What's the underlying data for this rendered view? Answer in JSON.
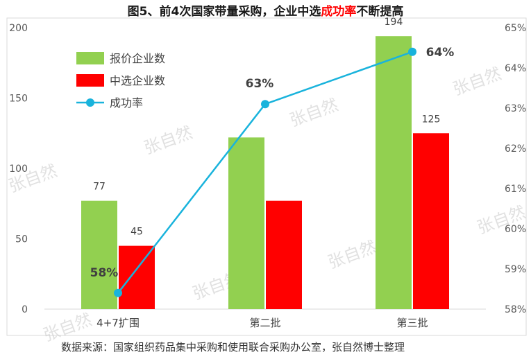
{
  "title": {
    "prefix": "图5、前4次国家带量采购，企业中选",
    "highlight": "成功率",
    "suffix": "不断提高"
  },
  "source": "数据来源：国家组织药品集中采购和使用联合采购办公室，张自然博士整理",
  "watermark": "张自然",
  "colors": {
    "bid": "#92d050",
    "selected": "#ff0000",
    "rate": "#19b3dc"
  },
  "chart_data": {
    "type": "bar",
    "categories": [
      "4+7扩围",
      "第二批",
      "第三批"
    ],
    "series": [
      {
        "name": "报价企业数",
        "kind": "bar",
        "axis": "left",
        "values": [
          77,
          122,
          194
        ],
        "labels": [
          "77",
          "",
          "194"
        ]
      },
      {
        "name": "中选企业数",
        "kind": "bar",
        "axis": "left",
        "values": [
          45,
          77,
          125
        ],
        "labels": [
          "45",
          "",
          "125"
        ]
      },
      {
        "name": "成功率",
        "kind": "line",
        "axis": "right",
        "values": [
          58.4,
          63.1,
          64.4
        ],
        "labels": [
          "58%",
          "63%",
          "64%"
        ]
      }
    ],
    "y_left": {
      "min": 0,
      "max": 200,
      "ticks": [
        "0",
        "50",
        "100",
        "150",
        "200"
      ]
    },
    "y_right": {
      "min": 58,
      "max": 65,
      "ticks": [
        "58%",
        "59%",
        "60%",
        "61%",
        "62%",
        "63%",
        "64%",
        "65%"
      ]
    },
    "legend": "top-left",
    "grid": false
  }
}
